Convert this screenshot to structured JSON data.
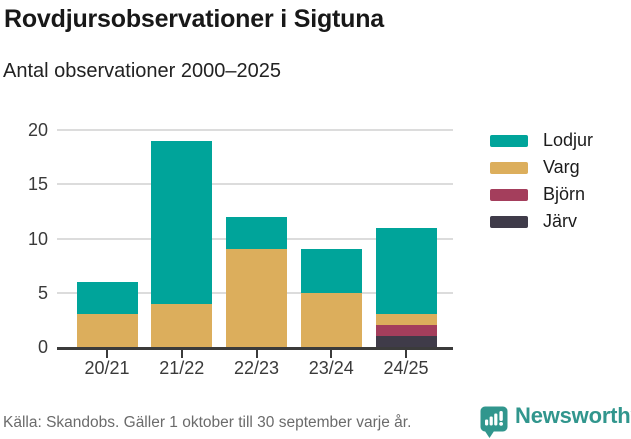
{
  "chart": {
    "title": "Rovdjursobservationer i Sigtuna",
    "subtitle": "Antal observationer 2000–2025"
  },
  "chart_data": {
    "type": "bar",
    "stacked": true,
    "title": "Rovdjursobservationer i Sigtuna",
    "subtitle": "Antal observationer 2000–2025",
    "categories": [
      "20/21",
      "21/22",
      "22/23",
      "23/24",
      "24/25"
    ],
    "series": [
      {
        "name": "Lodjur",
        "color": "#00a49a",
        "values": [
          3,
          15,
          3,
          4,
          8
        ]
      },
      {
        "name": "Varg",
        "color": "#dcae5c",
        "values": [
          3,
          4,
          9,
          5,
          1
        ]
      },
      {
        "name": "Björn",
        "color": "#a43e5c",
        "values": [
          0,
          0,
          0,
          0,
          1
        ]
      },
      {
        "name": "Järv",
        "color": "#3f3b49",
        "values": [
          0,
          0,
          0,
          0,
          1
        ]
      }
    ],
    "stack_order_bottom_to_top": [
      "Järv",
      "Björn",
      "Varg",
      "Lodjur"
    ],
    "totals": [
      6,
      19,
      12,
      9,
      11
    ],
    "xlabel": "",
    "ylabel": "",
    "ylim": [
      0,
      20
    ],
    "yticks": [
      0,
      5,
      10,
      15,
      20
    ],
    "grid": true,
    "legend_position": "right"
  },
  "footer": {
    "source": "Källa: Skandobs. Gäller 1 oktober till 30 september varje år.",
    "brand": "Newsworthy",
    "logo_icon": "newsworthy-bar-chart-speech-bubble-icon"
  },
  "colors": {
    "accent_teal": "#00a49a",
    "varg_tan": "#dcae5c",
    "bjorn_maroon": "#a43e5c",
    "jarv_dark": "#3f3b49",
    "brand_teal": "#31968d",
    "axis": "#3b3b3b",
    "grid": "#dcdcdc",
    "tick_text": "#3a3a3a",
    "muted_text": "#6b6b6b"
  }
}
